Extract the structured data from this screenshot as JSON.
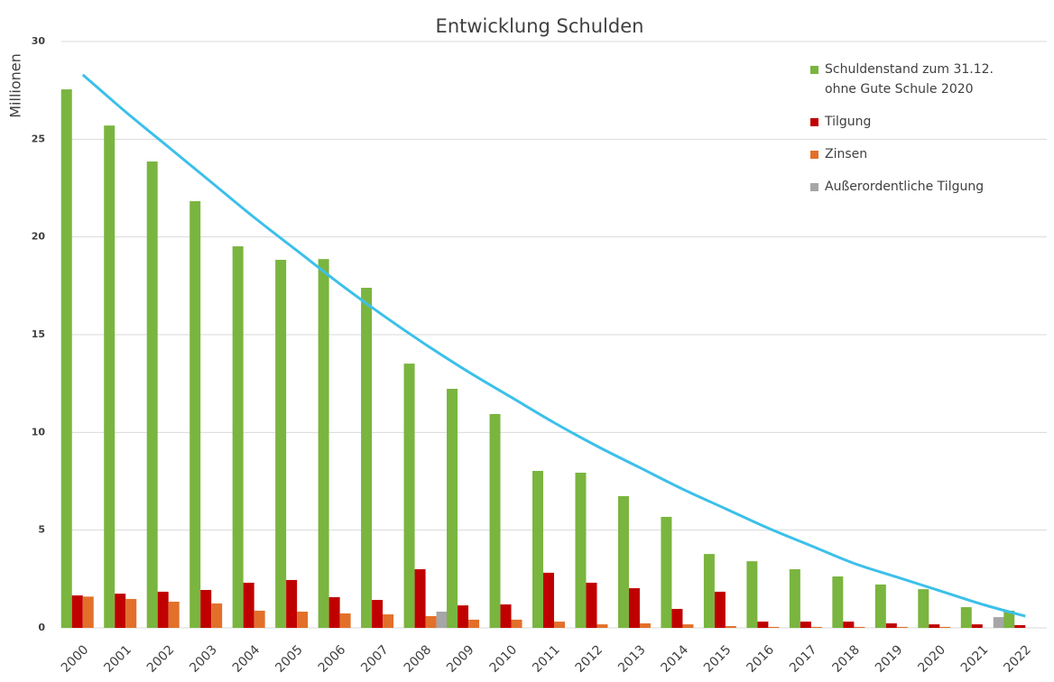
{
  "chart_data": {
    "type": "bar",
    "title": "Entwicklung Schulden",
    "y_label": "Millionen",
    "categories": [
      "2000",
      "2001",
      "2002",
      "2003",
      "2004",
      "2005",
      "2006",
      "2007",
      "2008",
      "2009",
      "2010",
      "2011",
      "2012",
      "2013",
      "2014",
      "2015",
      "2016",
      "2017",
      "2018",
      "2019",
      "2020",
      "2021",
      "2022"
    ],
    "series": [
      {
        "name": "Schuldenstand zum 31.12.\nohne Gute Schule 2020",
        "color": "#7ab53f",
        "values": [
          27.55,
          25.7,
          23.86,
          21.83,
          19.52,
          18.83,
          18.87,
          17.4,
          13.52,
          12.23,
          10.94,
          8.03,
          7.94,
          6.74,
          5.68,
          3.78,
          3.41,
          3.0,
          2.63,
          2.22,
          1.98,
          1.06,
          0.88
        ]
      },
      {
        "name": "Tilgung",
        "color": "#c00000",
        "values": [
          1.66,
          1.75,
          1.85,
          1.94,
          2.31,
          2.45,
          1.57,
          1.43,
          3.0,
          1.15,
          1.2,
          2.82,
          2.31,
          2.03,
          0.97,
          1.85,
          0.32,
          0.32,
          0.32,
          0.23,
          0.18,
          0.18,
          0.14
        ]
      },
      {
        "name": "Zinsen",
        "color": "#e2702a",
        "values": [
          1.6,
          1.48,
          1.34,
          1.25,
          0.88,
          0.83,
          0.74,
          0.69,
          0.6,
          0.42,
          0.42,
          0.32,
          0.18,
          0.23,
          0.18,
          0.09,
          0.05,
          0.05,
          0.05,
          0.05,
          0.05,
          0,
          0
        ]
      },
      {
        "name": "Außerordentliche Tilgung",
        "color": "#a6a6a6",
        "values": [
          0,
          0,
          0,
          0,
          0,
          0,
          0,
          0,
          0.83,
          0,
          0,
          0,
          0,
          0,
          0,
          0,
          0,
          0,
          0,
          0,
          0,
          0.55,
          0
        ]
      }
    ],
    "trendline": {
      "color": "#3cc0ea",
      "values": [
        28.3,
        26.4,
        24.6,
        22.8,
        21.0,
        19.3,
        17.6,
        16.0,
        14.5,
        13.1,
        11.8,
        10.5,
        9.3,
        8.2,
        7.1,
        6.1,
        5.1,
        4.2,
        3.3,
        2.6,
        1.9,
        1.2,
        0.6
      ]
    },
    "ylim": [
      0,
      30
    ],
    "yticks": [
      0,
      5,
      10,
      15,
      20,
      25,
      30
    ],
    "grid": true
  }
}
